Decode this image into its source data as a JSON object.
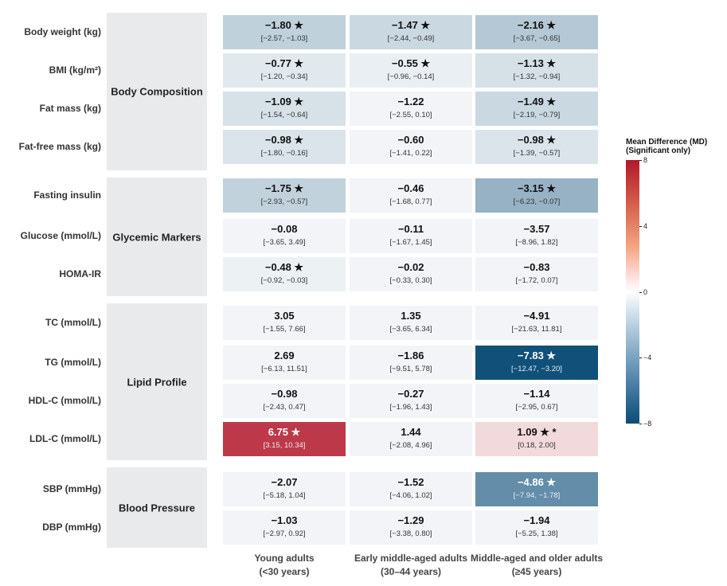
{
  "chart_data": {
    "type": "heatmap",
    "columns": [
      {
        "line1": "Young adults",
        "line2": "(<30 years)"
      },
      {
        "line1": "Early middle-aged adults",
        "line2": "(30–44 years)"
      },
      {
        "line1": "Middle-aged and older adults",
        "line2": "(≥45 years)"
      }
    ],
    "groups": [
      {
        "name": "Body Composition",
        "rows": [
          {
            "label": "Body weight (kg)",
            "cells": [
              {
                "md": "−1.80",
                "sig": "★",
                "ci": "[−2.57, −1.03]",
                "value": -1.8,
                "colored": true
              },
              {
                "md": "−1.47",
                "sig": "★",
                "ci": "[−2.44, −0.49]",
                "value": -1.47,
                "colored": true
              },
              {
                "md": "−2.16",
                "sig": "★",
                "ci": "[−3.67, −0.65]",
                "value": -2.16,
                "colored": true
              }
            ]
          },
          {
            "label": "BMI (kg/m²)",
            "cells": [
              {
                "md": "−0.77",
                "sig": "★",
                "ci": "[−1.20, −0.34]",
                "value": -0.77,
                "colored": true
              },
              {
                "md": "−0.55",
                "sig": "★",
                "ci": "[−0.96, −0.14]",
                "value": -0.55,
                "colored": true
              },
              {
                "md": "−1.13",
                "sig": "★",
                "ci": "[−1.32, −0.94]",
                "value": -1.13,
                "colored": true
              }
            ]
          },
          {
            "label": "Fat mass (kg)",
            "cells": [
              {
                "md": "−1.09",
                "sig": "★",
                "ci": "[−1.54, −0.64]",
                "value": -1.09,
                "colored": true
              },
              {
                "md": "−1.22",
                "sig": "",
                "ci": "[−2.55, 0.10]",
                "value": -1.22,
                "colored": false
              },
              {
                "md": "−1.49",
                "sig": "★",
                "ci": "[−2.19, −0.79]",
                "value": -1.49,
                "colored": true
              }
            ]
          },
          {
            "label": "Fat-free mass (kg)",
            "cells": [
              {
                "md": "−0.98",
                "sig": "★",
                "ci": "[−1.80, −0.16]",
                "value": -0.98,
                "colored": true
              },
              {
                "md": "−0.60",
                "sig": "",
                "ci": "[−1.41, 0.22]",
                "value": -0.6,
                "colored": false
              },
              {
                "md": "−0.98",
                "sig": "★",
                "ci": "[−1.39, −0.57]",
                "value": -0.98,
                "colored": true
              }
            ]
          }
        ]
      },
      {
        "name": "Glycemic Markers",
        "rows": [
          {
            "label": "Fasting insulin",
            "cells": [
              {
                "md": "−1.75",
                "sig": "★",
                "ci": "[−2.93, −0.57]",
                "value": -1.75,
                "colored": true
              },
              {
                "md": "−0.46",
                "sig": "",
                "ci": "[−1.68, 0.77]",
                "value": -0.46,
                "colored": false
              },
              {
                "md": "−3.15",
                "sig": "★",
                "ci": "[−6.23, −0.07]",
                "value": -3.15,
                "colored": true
              }
            ]
          },
          {
            "label": "Glucose (mmol/L)",
            "cells": [
              {
                "md": "−0.08",
                "sig": "",
                "ci": "[−3.65, 3.49]",
                "value": -0.08,
                "colored": false
              },
              {
                "md": "−0.11",
                "sig": "",
                "ci": "[−1.67, 1.45]",
                "value": -0.11,
                "colored": false
              },
              {
                "md": "−3.57",
                "sig": "",
                "ci": "[−8.96, 1.82]",
                "value": -3.57,
                "colored": false
              }
            ]
          },
          {
            "label": "HOMA-IR",
            "cells": [
              {
                "md": "−0.48",
                "sig": "★",
                "ci": "[−0.92, −0.03]",
                "value": -0.48,
                "colored": true
              },
              {
                "md": "−0.02",
                "sig": "",
                "ci": "[−0.33, 0.30]",
                "value": -0.02,
                "colored": false
              },
              {
                "md": "−0.83",
                "sig": "",
                "ci": "[−1.72, 0.07]",
                "value": -0.83,
                "colored": false
              }
            ]
          }
        ]
      },
      {
        "name": "Lipid Profile",
        "rows": [
          {
            "label": "TC (mmol/L)",
            "cells": [
              {
                "md": "3.05",
                "sig": "",
                "ci": "[−1.55, 7.66]",
                "value": 3.05,
                "colored": false
              },
              {
                "md": "1.35",
                "sig": "",
                "ci": "[−3.65, 6.34]",
                "value": 1.35,
                "colored": false
              },
              {
                "md": "−4.91",
                "sig": "",
                "ci": "[−21.63, 11.81]",
                "value": -4.91,
                "colored": false
              }
            ]
          },
          {
            "label": "TG (mmol/L)",
            "cells": [
              {
                "md": "2.69",
                "sig": "",
                "ci": "[−6.13, 11.51]",
                "value": 2.69,
                "colored": false
              },
              {
                "md": "−1.86",
                "sig": "",
                "ci": "[−9.51, 5.78]",
                "value": -1.86,
                "colored": false
              },
              {
                "md": "−7.83",
                "sig": "★",
                "ci": "[−12.47, −3.20]",
                "value": -7.83,
                "colored": true
              }
            ]
          },
          {
            "label": "HDL-C (mmol/L)",
            "cells": [
              {
                "md": "−0.98",
                "sig": "",
                "ci": "[−2.43, 0.47]",
                "value": -0.98,
                "colored": false
              },
              {
                "md": "−0.27",
                "sig": "",
                "ci": "[−1.96, 1.43]",
                "value": -0.27,
                "colored": false
              },
              {
                "md": "−1.14",
                "sig": "",
                "ci": "[−2.95, 0.67]",
                "value": -1.14,
                "colored": false
              }
            ]
          },
          {
            "label": "LDL-C (mmol/L)",
            "cells": [
              {
                "md": "6.75",
                "sig": "★",
                "ci": "[3.15, 10.34]",
                "value": 6.75,
                "colored": true
              },
              {
                "md": "1.44",
                "sig": "",
                "ci": "[−2.08, 4.96]",
                "value": 1.44,
                "colored": false
              },
              {
                "md": "1.09",
                "sig": "★ *",
                "ci": "[0.18, 2.00]",
                "value": 1.09,
                "colored": true
              }
            ]
          }
        ]
      },
      {
        "name": "Blood Pressure",
        "rows": [
          {
            "label": "SBP (mmHg)",
            "cells": [
              {
                "md": "−2.07",
                "sig": "",
                "ci": "[−5.18, 1.04]",
                "value": -2.07,
                "colored": false
              },
              {
                "md": "−1.52",
                "sig": "",
                "ci": "[−4.06, 1.02]",
                "value": -1.52,
                "colored": false
              },
              {
                "md": "−4.86",
                "sig": "★",
                "ci": "[−7.94, −1.78]",
                "value": -4.86,
                "colored": true
              }
            ]
          },
          {
            "label": "DBP (mmHg)",
            "cells": [
              {
                "md": "−1.03",
                "sig": "",
                "ci": "[−2.97, 0.92]",
                "value": -1.03,
                "colored": false
              },
              {
                "md": "−1.29",
                "sig": "",
                "ci": "[−3.38, 0.80]",
                "value": -1.29,
                "colored": false
              },
              {
                "md": "−1.94",
                "sig": "",
                "ci": "[−5.25, 1.38]",
                "value": -1.94,
                "colored": false
              }
            ]
          }
        ]
      }
    ],
    "legend": {
      "title_line1": "Mean Difference (MD)",
      "title_line2": "(Significant only)",
      "ticks": [
        "8",
        "4",
        "0",
        "−4",
        "−8"
      ],
      "tick_values": [
        8,
        4,
        0,
        -4,
        -8
      ],
      "range": [
        -8,
        8
      ],
      "placement": "right"
    },
    "colors": {
      "positive_max": "#b2182b",
      "neutral": "#ffffff",
      "negative_max": "#0b4d76",
      "not_significant_fill": "#f2f4f7",
      "group_band": "#e9eaec"
    }
  }
}
